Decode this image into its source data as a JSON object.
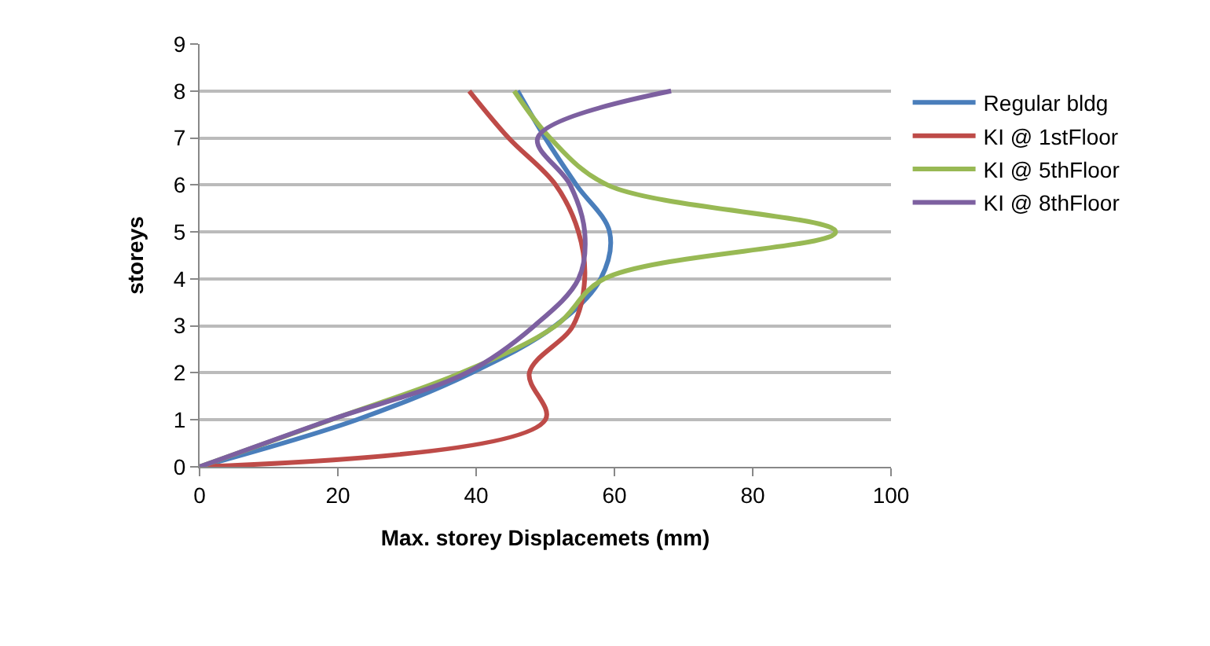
{
  "chart_data": {
    "type": "line",
    "xlabel": "Max. storey Displacemets (mm)",
    "ylabel": "storeys",
    "xlim": [
      0,
      100
    ],
    "xticks": [
      0,
      20,
      40,
      60,
      80,
      100
    ],
    "ylim": [
      0,
      9
    ],
    "yticks": [
      0,
      1,
      2,
      3,
      4,
      5,
      6,
      7,
      8,
      9
    ],
    "grid": "y",
    "legend": "right",
    "marker": "none",
    "line_style": "solid",
    "series": [
      {
        "name": "Regular bldg",
        "color": "#4a7ebb",
        "x": [
          0,
          22.7,
          39.3,
          51.4,
          58,
          59.3,
          54.5,
          50,
          46
        ],
        "values": [
          0,
          1,
          2,
          3,
          4,
          5,
          6,
          7,
          8
        ]
      },
      {
        "name": "KI @ 1stFloor",
        "color": "#be4b48",
        "x": [
          0,
          50,
          47.7,
          54,
          55.7,
          54.8,
          51.5,
          44.7,
          39
        ],
        "values": [
          0,
          1,
          2,
          3,
          4,
          5,
          6,
          7,
          8
        ]
      },
      {
        "name": "KI @ 5thFloor",
        "color": "#98b954",
        "x": [
          0,
          19,
          37.8,
          51.5,
          58.5,
          92,
          59,
          50.7,
          45.5
        ],
        "values": [
          0,
          1,
          2,
          3,
          4,
          5,
          6,
          7,
          8
        ]
      },
      {
        "name": "KI @ 8thFloor",
        "color": "#7d60a0",
        "x": [
          0,
          18.9,
          38.6,
          48.4,
          54.8,
          55.7,
          53.6,
          48.9,
          68.2
        ],
        "values": [
          0,
          1,
          2,
          3,
          4,
          5,
          6,
          7,
          8
        ]
      }
    ]
  }
}
